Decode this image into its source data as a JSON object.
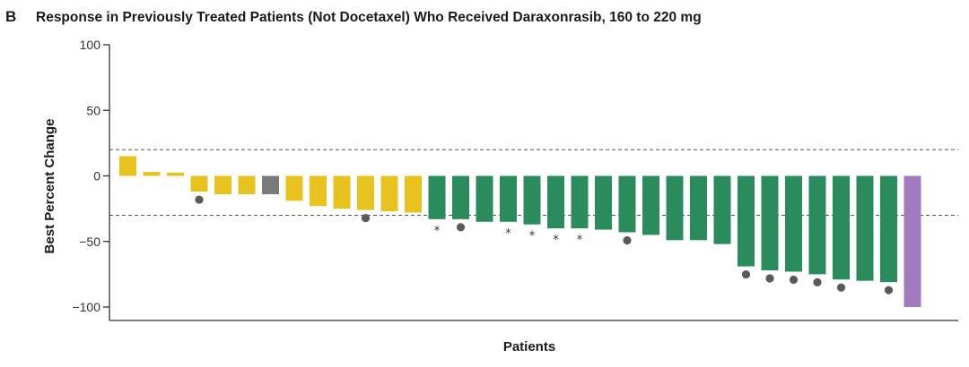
{
  "panel_label": "B",
  "chart_data": {
    "type": "bar",
    "title": "Response in Previously Treated Patients (Not Docetaxel) Who Received Daraxonrasib, 160 to 220 mg",
    "xlabel": "Patients",
    "ylabel": "Best Percent Change",
    "ylim": [
      -100,
      100
    ],
    "yticks": [
      100,
      50,
      0,
      -50,
      -100
    ],
    "ytick_labels": [
      "100",
      "50",
      "0",
      "−50",
      "−100"
    ],
    "reference_lines": [
      20,
      -30
    ],
    "reference_line_style": "dashed",
    "grid": false,
    "legend": "none",
    "colors": {
      "yellow": "#e8c21e",
      "gray": "#7a7a7a",
      "green": "#2a8b5c",
      "purple": "#a27ac0",
      "marker": "#5a5a5a",
      "axis": "#333333",
      "reference_line": "#555555"
    },
    "marker_symbols": {
      "dot": "●",
      "asterisk": "*"
    },
    "bars": [
      {
        "value": 15,
        "color": "yellow",
        "marker": ""
      },
      {
        "value": 3,
        "color": "yellow",
        "marker": ""
      },
      {
        "value": 2.5,
        "color": "yellow",
        "marker": ""
      },
      {
        "value": -12,
        "color": "yellow",
        "marker": "dot"
      },
      {
        "value": -14,
        "color": "yellow",
        "marker": ""
      },
      {
        "value": -14,
        "color": "yellow",
        "marker": ""
      },
      {
        "value": -14,
        "color": "gray",
        "marker": ""
      },
      {
        "value": -19,
        "color": "yellow",
        "marker": ""
      },
      {
        "value": -23,
        "color": "yellow",
        "marker": ""
      },
      {
        "value": -25,
        "color": "yellow",
        "marker": ""
      },
      {
        "value": -26,
        "color": "yellow",
        "marker": "dot"
      },
      {
        "value": -27,
        "color": "yellow",
        "marker": ""
      },
      {
        "value": -28,
        "color": "yellow",
        "marker": ""
      },
      {
        "value": -33,
        "color": "green",
        "marker": "asterisk"
      },
      {
        "value": -33,
        "color": "green",
        "marker": "dot"
      },
      {
        "value": -35,
        "color": "green",
        "marker": ""
      },
      {
        "value": -35,
        "color": "green",
        "marker": "asterisk"
      },
      {
        "value": -37,
        "color": "green",
        "marker": "asterisk"
      },
      {
        "value": -40,
        "color": "green",
        "marker": "asterisk"
      },
      {
        "value": -40,
        "color": "green",
        "marker": "asterisk"
      },
      {
        "value": -41,
        "color": "green",
        "marker": ""
      },
      {
        "value": -43,
        "color": "green",
        "marker": "dot"
      },
      {
        "value": -45,
        "color": "green",
        "marker": ""
      },
      {
        "value": -49,
        "color": "green",
        "marker": ""
      },
      {
        "value": -49,
        "color": "green",
        "marker": ""
      },
      {
        "value": -52,
        "color": "green",
        "marker": ""
      },
      {
        "value": -69,
        "color": "green",
        "marker": "dot"
      },
      {
        "value": -72,
        "color": "green",
        "marker": "dot"
      },
      {
        "value": -73,
        "color": "green",
        "marker": "dot"
      },
      {
        "value": -75,
        "color": "green",
        "marker": "dot"
      },
      {
        "value": -79,
        "color": "green",
        "marker": "dot"
      },
      {
        "value": -80,
        "color": "green",
        "marker": ""
      },
      {
        "value": -81,
        "color": "green",
        "marker": "dot"
      },
      {
        "value": -100,
        "color": "purple",
        "marker": ""
      }
    ]
  }
}
